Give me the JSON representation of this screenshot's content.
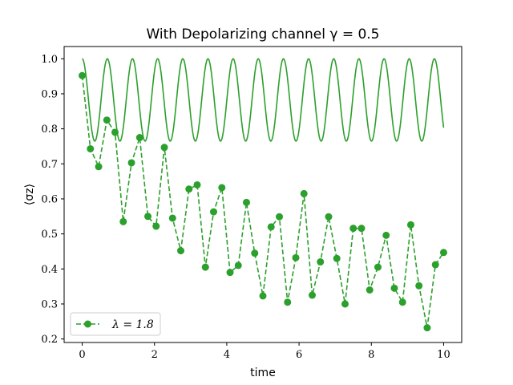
{
  "chart_data": {
    "type": "line",
    "title": "With Depolarizing channel γ = 0.5",
    "xlabel": "time",
    "ylabel": "⟨σz⟩",
    "xlim": [
      -0.5,
      10.5
    ],
    "ylim": [
      0.19,
      1.035
    ],
    "xticks": [
      0,
      2,
      4,
      6,
      8,
      10
    ],
    "yticks": [
      0.2,
      0.3,
      0.4,
      0.5,
      0.6,
      0.7,
      0.8,
      0.9,
      1.0
    ],
    "ytick_labels": [
      "0.2",
      "0.3",
      "0.4",
      "0.5",
      "0.6",
      "0.7",
      "0.8",
      "0.9",
      "1.0"
    ],
    "grid": false,
    "legend_position": "lower-left",
    "color": "#2ca02c",
    "series": [
      {
        "name": "",
        "style": "solid",
        "function": {
          "kind": "cosine-envelope",
          "max": 1.0,
          "min": 0.765,
          "period": 0.696,
          "x_start": 0,
          "x_end": 10
        }
      },
      {
        "name": "λ = 1.8",
        "style": "dashed-markers",
        "x": [
          0.0,
          0.227,
          0.455,
          0.682,
          0.909,
          1.136,
          1.364,
          1.591,
          1.818,
          2.045,
          2.273,
          2.5,
          2.727,
          2.955,
          3.182,
          3.409,
          3.636,
          3.864,
          4.091,
          4.318,
          4.545,
          4.773,
          5.0,
          5.227,
          5.455,
          5.682,
          5.909,
          6.136,
          6.364,
          6.591,
          6.818,
          7.045,
          7.273,
          7.5,
          7.727,
          7.955,
          8.182,
          8.409,
          8.636,
          8.864,
          9.091,
          9.318,
          9.545,
          9.773,
          10.0
        ],
        "y": [
          0.952,
          0.743,
          0.692,
          0.825,
          0.79,
          0.535,
          0.703,
          0.775,
          0.55,
          0.522,
          0.747,
          0.545,
          0.452,
          0.628,
          0.64,
          0.405,
          0.563,
          0.632,
          0.39,
          0.41,
          0.59,
          0.445,
          0.323,
          0.52,
          0.549,
          0.305,
          0.432,
          0.615,
          0.325,
          0.42,
          0.549,
          0.43,
          0.3,
          0.516,
          0.516,
          0.34,
          0.405,
          0.496,
          0.345,
          0.305,
          0.526,
          0.352,
          0.232,
          0.412,
          0.447
        ]
      }
    ]
  }
}
